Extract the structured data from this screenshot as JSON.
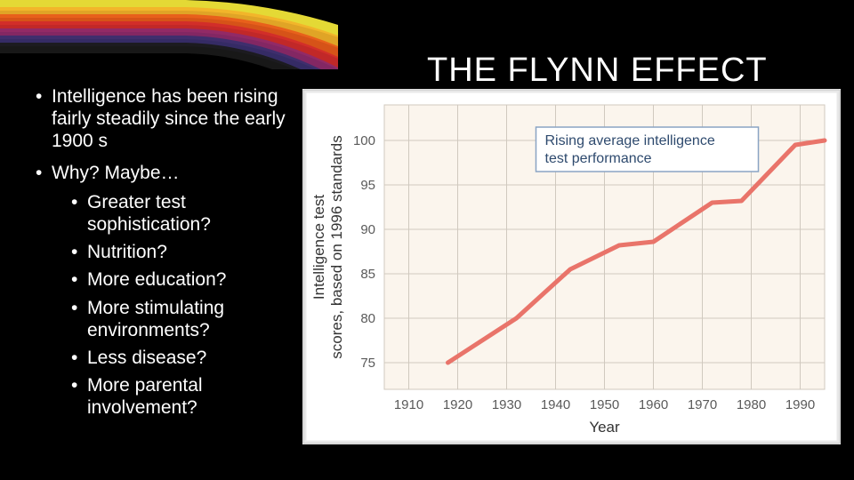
{
  "title": "THE FLYNN EFFECT",
  "bullets": {
    "a": "Intelligence has been rising fairly steadily since the early 1900 s",
    "b": "Why? Maybe…",
    "sub": {
      "s1": "Greater test sophistication?",
      "s2": "Nutrition?",
      "s3": "More education?",
      "s4": "More stimulating environments?",
      "s5": "Less disease?",
      "s6": "More parental involvement?"
    }
  },
  "chart": {
    "type": "line",
    "y_label_line1": "Intelligence test",
    "y_label_line2": "scores, based on 1996 standards",
    "x_label": "Year",
    "annotation_line1": "Rising average intelligence",
    "annotation_line2": "test performance",
    "x_ticks": [
      1910,
      1920,
      1930,
      1940,
      1950,
      1960,
      1970,
      1980,
      1990
    ],
    "y_ticks": [
      75,
      80,
      85,
      90,
      95,
      100
    ],
    "x_range": [
      1905,
      1995
    ],
    "y_range": [
      72,
      104
    ],
    "data": [
      [
        1918,
        75.0
      ],
      [
        1932,
        80.0
      ],
      [
        1943,
        85.5
      ],
      [
        1953,
        88.2
      ],
      [
        1960,
        88.6
      ],
      [
        1972,
        93.0
      ],
      [
        1978,
        93.2
      ],
      [
        1989,
        99.5
      ],
      [
        1995,
        100.0
      ]
    ],
    "line_color": "#e9746a",
    "line_width": 5,
    "plot_bg": "#fbf5ed",
    "grid_color": "#d0c9bf",
    "axis_text_color": "#5a5a5a",
    "axis_text_size": 15,
    "label_text_size": 17,
    "annotation_box_border": "#8aa4c4",
    "annotation_box_bg": "#ffffff",
    "annotation_text_color": "#2e4a6e",
    "annotation_text_size": 16
  },
  "banner": {
    "stripes": [
      {
        "color": "#f7ec3a",
        "y": 0,
        "bend": 0
      },
      {
        "color": "#f3b229",
        "y": 8,
        "bend": 4
      },
      {
        "color": "#e85a1a",
        "y": 16,
        "bend": 8
      },
      {
        "color": "#d12b2b",
        "y": 24,
        "bend": 12
      },
      {
        "color": "#8e2a6b",
        "y": 32,
        "bend": 16
      },
      {
        "color": "#3a2f6e",
        "y": 40,
        "bend": 20
      },
      {
        "color": "#1a1a1a",
        "y": 48,
        "bend": 24
      }
    ]
  }
}
